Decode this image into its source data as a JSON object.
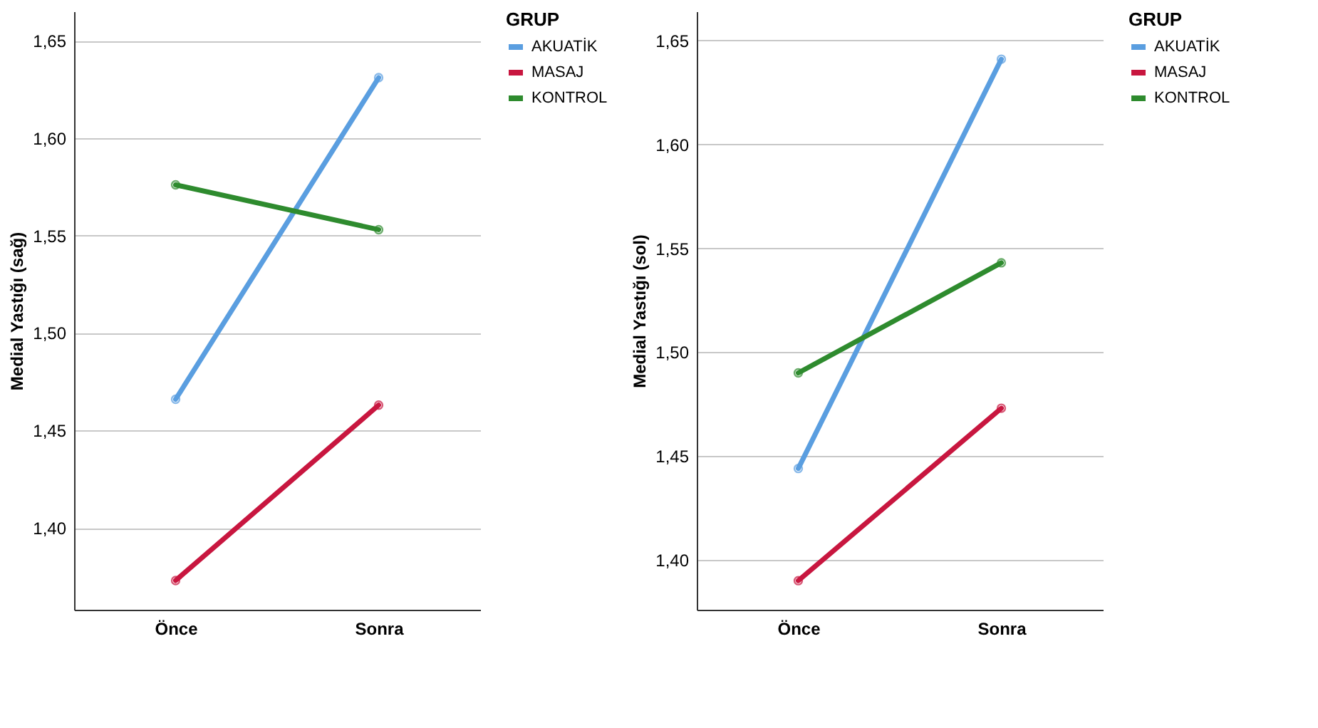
{
  "chart_data": [
    {
      "type": "line",
      "ylabel": "Medial Yastığı (sağ)",
      "legend_title": "GRUP",
      "legend": "top right",
      "grid": "y",
      "marker": "circle",
      "line_style": "solid",
      "categories": [
        "Önce",
        "Sonra"
      ],
      "ylim": [
        1.358,
        1.665
      ],
      "yticks": [
        {
          "value": 1.4,
          "label": "1,40"
        },
        {
          "value": 1.45,
          "label": "1,45"
        },
        {
          "value": 1.5,
          "label": "1,50"
        },
        {
          "value": 1.55,
          "label": "1,55"
        },
        {
          "value": 1.6,
          "label": "1,60"
        },
        {
          "value": 1.65,
          "label": "1,65"
        }
      ],
      "series": [
        {
          "name": "AKUATİK",
          "color": "#5a9ee0",
          "values": [
            1.466,
            1.631
          ]
        },
        {
          "name": "MASAJ",
          "color": "#c8163f",
          "values": [
            1.373,
            1.463
          ]
        },
        {
          "name": "KONTROL",
          "color": "#2e8b2e",
          "values": [
            1.576,
            1.553
          ]
        }
      ]
    },
    {
      "type": "line",
      "ylabel": "Medial Yastığı (sol)",
      "legend_title": "GRUP",
      "legend": "top right",
      "grid": "y",
      "marker": "circle",
      "line_style": "solid",
      "categories": [
        "Önce",
        "Sonra"
      ],
      "ylim": [
        1.376,
        1.664
      ],
      "yticks": [
        {
          "value": 1.4,
          "label": "1,40"
        },
        {
          "value": 1.45,
          "label": "1,45"
        },
        {
          "value": 1.5,
          "label": "1,50"
        },
        {
          "value": 1.55,
          "label": "1,55"
        },
        {
          "value": 1.6,
          "label": "1,60"
        },
        {
          "value": 1.65,
          "label": "1,65"
        }
      ],
      "series": [
        {
          "name": "AKUATİK",
          "color": "#5a9ee0",
          "values": [
            1.444,
            1.641
          ]
        },
        {
          "name": "MASAJ",
          "color": "#c8163f",
          "values": [
            1.39,
            1.473
          ]
        },
        {
          "name": "KONTROL",
          "color": "#2e8b2e",
          "values": [
            1.49,
            1.543
          ]
        }
      ]
    }
  ]
}
